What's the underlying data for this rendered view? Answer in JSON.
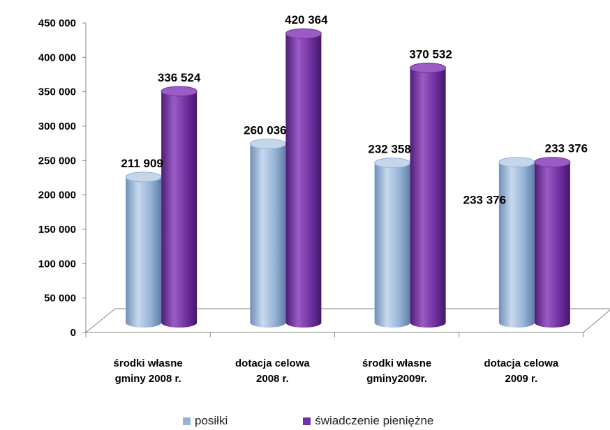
{
  "colors": {
    "posilki": "#95b3d7",
    "posilki_dark": "#5f7fa6",
    "posilki_light": "#c5d6ea",
    "swiadczenie": "#7030a0",
    "swiadczenie_dark": "#4b1a72",
    "swiadczenie_light": "#9a5cc4"
  },
  "chart_data": {
    "type": "bar",
    "style": "3d-cylinder",
    "categories": [
      [
        "środki własne",
        "gminy 2008 r."
      ],
      [
        "dotacja celowa",
        "2008 r."
      ],
      [
        "środki własne",
        "gminy2009r."
      ],
      [
        "dotacja celowa",
        "2009 r."
      ]
    ],
    "series": [
      {
        "name": "posiłki",
        "values": [
          211909,
          260036,
          232358,
          233376
        ],
        "labels": [
          "211 909",
          "260 036",
          "232 358",
          "233 376"
        ]
      },
      {
        "name": "świadczenie pieniężne",
        "values": [
          336524,
          420364,
          370532,
          233376
        ],
        "labels": [
          "336 524",
          "420 364",
          "370 532",
          "233 376"
        ]
      }
    ],
    "ylim": [
      0,
      450000
    ],
    "yticks": [
      "0",
      "50 000",
      "100 000",
      "150 000",
      "200 000",
      "250 000",
      "300 000",
      "350 000",
      "400 000",
      "450 000"
    ],
    "legend_position": "bottom",
    "grid": false
  },
  "legend": {
    "items": [
      {
        "label": "posiłki"
      },
      {
        "label": "świadczenie pieniężne"
      }
    ]
  }
}
